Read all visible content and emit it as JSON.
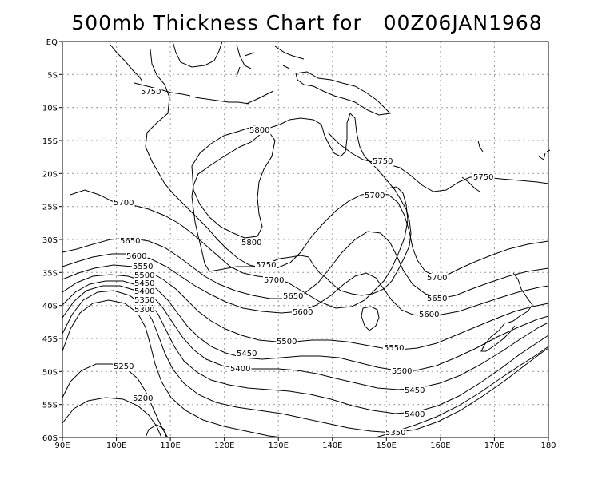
{
  "title": "500mb Thickness Chart for",
  "valid_time": "00Z06JAN1968",
  "x_ticks": [
    "90E",
    "100E",
    "110E",
    "120E",
    "130E",
    "140E",
    "150E",
    "160E",
    "170E",
    "180"
  ],
  "y_ticks": [
    "EQ",
    "5S",
    "10S",
    "15S",
    "20S",
    "25S",
    "30S",
    "35S",
    "40S",
    "45S",
    "50S",
    "55S",
    "60S"
  ],
  "contour_labels": [
    {
      "id": "5750-a",
      "text": "5750"
    },
    {
      "id": "5800-a",
      "text": "5800"
    },
    {
      "id": "5750-b",
      "text": "5750"
    },
    {
      "id": "5750-c",
      "text": "5750"
    },
    {
      "id": "5700-a",
      "text": "5700"
    },
    {
      "id": "5700-b",
      "text": "5700"
    },
    {
      "id": "5800-b",
      "text": "5800"
    },
    {
      "id": "5750-d",
      "text": "5750"
    },
    {
      "id": "5650-a",
      "text": "5650"
    },
    {
      "id": "5600-a",
      "text": "5600"
    },
    {
      "id": "5550-a",
      "text": "5550"
    },
    {
      "id": "5500-a",
      "text": "5500"
    },
    {
      "id": "5450-a",
      "text": "5450"
    },
    {
      "id": "5400-a",
      "text": "5400"
    },
    {
      "id": "5350-a",
      "text": "5350"
    },
    {
      "id": "5300-a",
      "text": "5300"
    },
    {
      "id": "5700-c",
      "text": "5700"
    },
    {
      "id": "5650-b",
      "text": "5650"
    },
    {
      "id": "5600-b",
      "text": "5600"
    },
    {
      "id": "5500-b",
      "text": "5500"
    },
    {
      "id": "5450-b",
      "text": "5450"
    },
    {
      "id": "5400-b",
      "text": "5400"
    },
    {
      "id": "5250-a",
      "text": "5250"
    },
    {
      "id": "5200-a",
      "text": "5200"
    },
    {
      "id": "5700-d",
      "text": "5700"
    },
    {
      "id": "5650-c",
      "text": "5650"
    },
    {
      "id": "5600-c",
      "text": "5600"
    },
    {
      "id": "5550-b",
      "text": "5550"
    },
    {
      "id": "5500-c",
      "text": "5500"
    },
    {
      "id": "5450-c",
      "text": "5450"
    },
    {
      "id": "5400-c",
      "text": "5400"
    },
    {
      "id": "5350-b",
      "text": "5350"
    }
  ]
}
